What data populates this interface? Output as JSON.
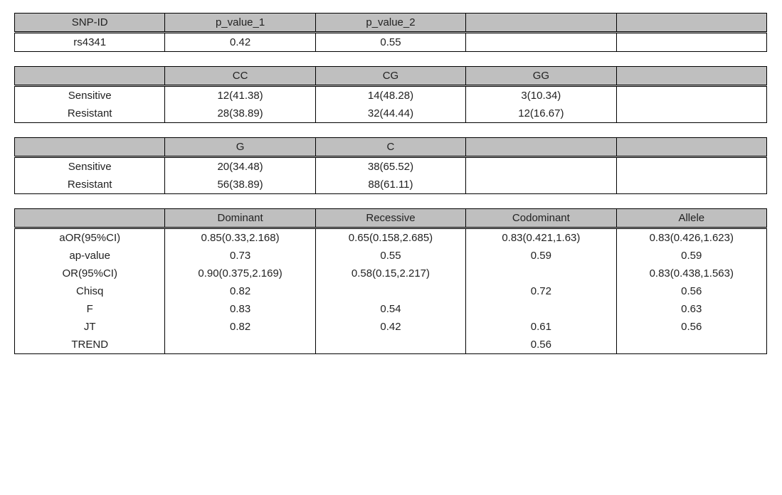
{
  "header_bg": "#bfbfbf",
  "border_color": "#000000",
  "table1": {
    "headers": [
      "SNP-ID",
      "p_value_1",
      "p_value_2",
      "",
      ""
    ],
    "row": [
      "rs4341",
      "0.42",
      "0.55",
      "",
      ""
    ]
  },
  "table2": {
    "headers": [
      "",
      "CC",
      "CG",
      "GG",
      ""
    ],
    "rows": [
      [
        "Sensitive",
        "12(41.38)",
        "14(48.28)",
        "3(10.34)",
        ""
      ],
      [
        "Resistant",
        "28(38.89)",
        "32(44.44)",
        "12(16.67)",
        ""
      ]
    ]
  },
  "table3": {
    "headers": [
      "",
      "G",
      "C",
      "",
      ""
    ],
    "rows": [
      [
        "Sensitive",
        "20(34.48)",
        "38(65.52)",
        "",
        ""
      ],
      [
        "Resistant",
        "56(38.89)",
        "88(61.11)",
        "",
        ""
      ]
    ]
  },
  "table4": {
    "headers": [
      "",
      "Dominant",
      "Recessive",
      "Codominant",
      "Allele"
    ],
    "rows": [
      [
        "aOR(95%CI)",
        "0.85(0.33,2.168)",
        "0.65(0.158,2.685)",
        "0.83(0.421,1.63)",
        "0.83(0.426,1.623)"
      ],
      [
        "ap-value",
        "0.73",
        "0.55",
        "0.59",
        "0.59"
      ],
      [
        "OR(95%CI)",
        "0.90(0.375,2.169)",
        "0.58(0.15,2.217)",
        "",
        "0.83(0.438,1.563)"
      ],
      [
        "Chisq",
        "0.82",
        "",
        "0.72",
        "0.56"
      ],
      [
        "F",
        "0.83",
        "0.54",
        "",
        "0.63"
      ],
      [
        "JT",
        "0.82",
        "0.42",
        "0.61",
        "0.56"
      ],
      [
        "TREND",
        "",
        "",
        "0.56",
        ""
      ]
    ]
  }
}
